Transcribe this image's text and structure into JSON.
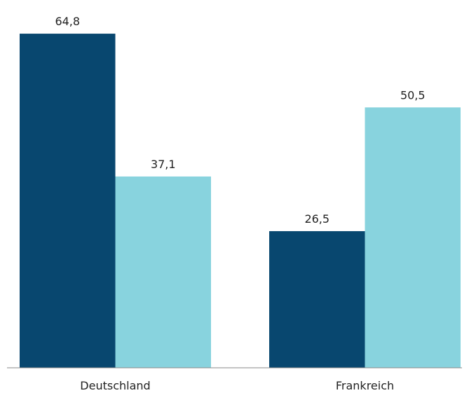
{
  "chart_data": {
    "type": "bar",
    "title": "",
    "xlabel": "",
    "ylabel": "",
    "categories": [
      "Deutschland",
      "Frankreich"
    ],
    "series": [
      {
        "values": [
          64.8,
          26.5
        ],
        "color": "#08476f"
      },
      {
        "values": [
          37.1,
          50.5
        ],
        "color": "#88d3de"
      }
    ],
    "value_labels": [
      [
        "64,8",
        "26,5"
      ],
      [
        "37,1",
        "50,5"
      ]
    ],
    "ylim": [
      0,
      70
    ],
    "grid": false,
    "legend": "none",
    "axis_color": "#888888"
  }
}
